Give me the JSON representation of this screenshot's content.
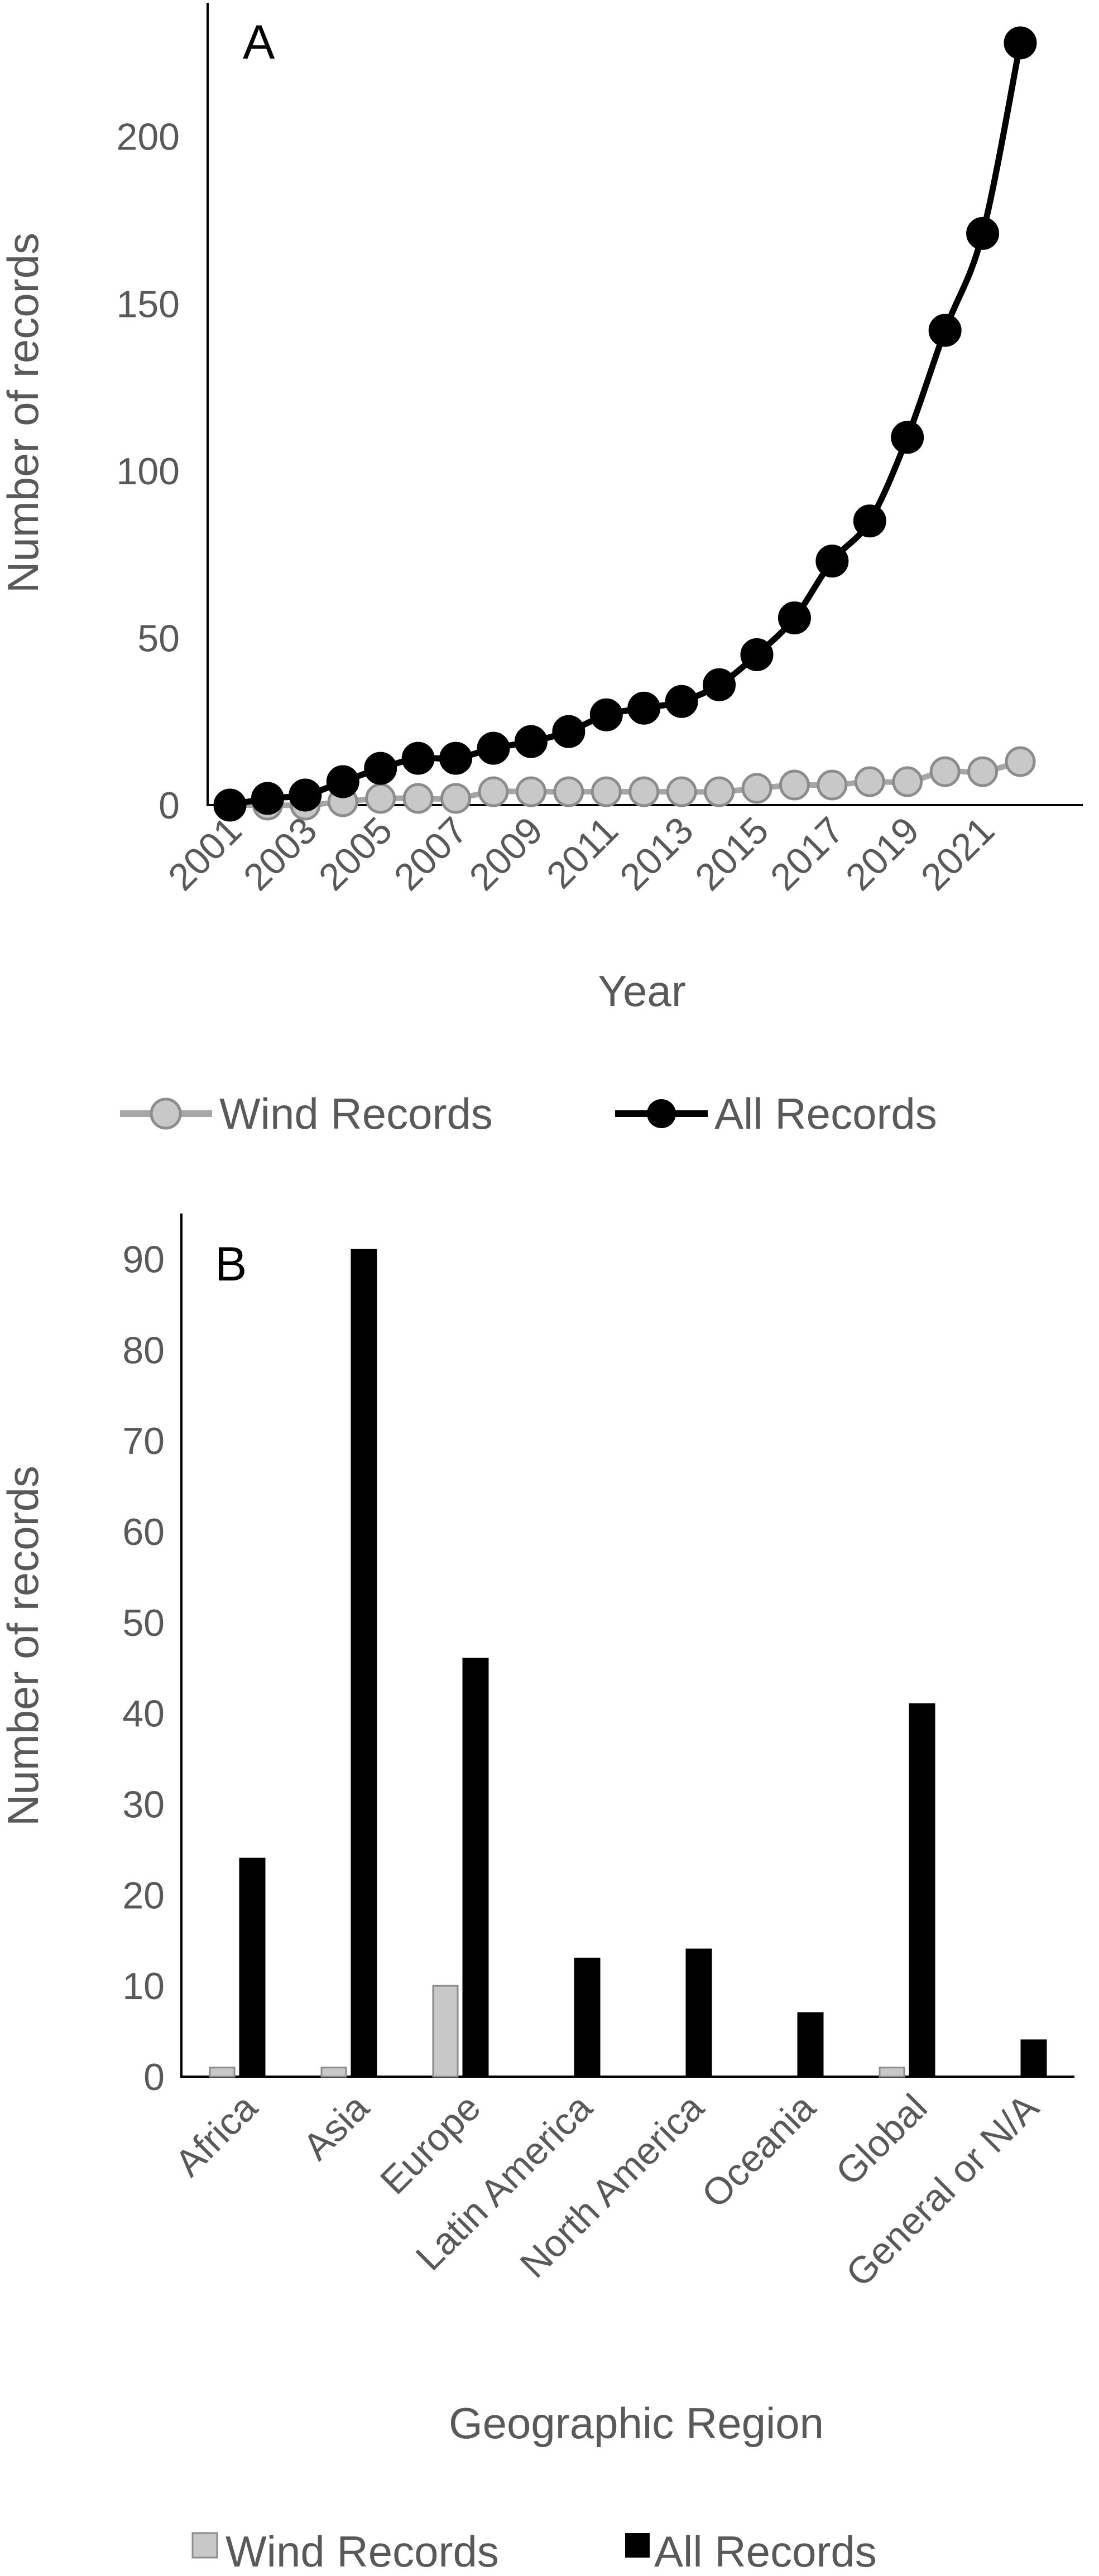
{
  "chart_data": [
    {
      "type": "line",
      "panel_label": "A",
      "x": [
        2001,
        2002,
        2003,
        2004,
        2005,
        2006,
        2007,
        2008,
        2009,
        2010,
        2011,
        2012,
        2013,
        2014,
        2015,
        2016,
        2017,
        2018,
        2019,
        2020,
        2021,
        2022
      ],
      "x_tick_labels": [
        "2001",
        "2003",
        "2005",
        "2007",
        "2009",
        "2011",
        "2013",
        "2015",
        "2017",
        "2019",
        "2021"
      ],
      "y_ticks": [
        0,
        50,
        100,
        150,
        200
      ],
      "ylim": [
        0,
        240
      ],
      "xlabel": "Year",
      "ylabel": "Number of records",
      "legend_position": "bottom",
      "series": [
        {
          "name": "Wind Records",
          "color": "#c8c8c8",
          "marker": "circle",
          "values": [
            0,
            0,
            0,
            1,
            2,
            2,
            2,
            4,
            4,
            4,
            4,
            4,
            4,
            4,
            5,
            6,
            6,
            7,
            7,
            10,
            10,
            13
          ]
        },
        {
          "name": "All Records",
          "color": "#000000",
          "marker": "circle",
          "values": [
            0,
            2,
            3,
            7,
            11,
            14,
            14,
            17,
            19,
            22,
            27,
            29,
            31,
            36,
            45,
            56,
            73,
            85,
            110,
            142,
            171,
            228
          ]
        }
      ]
    },
    {
      "type": "bar",
      "panel_label": "B",
      "categories": [
        "Africa",
        "Asia",
        "Europe",
        "Latin America",
        "North America",
        "Oceania",
        "Global",
        "General or N/A"
      ],
      "y_ticks": [
        0,
        10,
        20,
        30,
        40,
        50,
        60,
        70,
        80,
        90
      ],
      "ylim": [
        0,
        95
      ],
      "xlabel": "Geographic Region",
      "ylabel": "Number of records",
      "legend_position": "bottom",
      "series": [
        {
          "name": "Wind Records",
          "color": "#c8c8c8",
          "values": [
            1,
            1,
            10,
            0,
            0,
            0,
            1,
            0
          ]
        },
        {
          "name": "All Records",
          "color": "#000000",
          "values": [
            24,
            91,
            46,
            13,
            14,
            7,
            41,
            4
          ]
        }
      ]
    }
  ]
}
